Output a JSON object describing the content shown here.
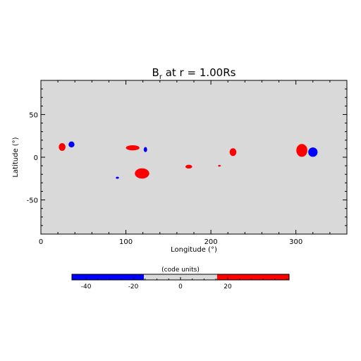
{
  "chart_data": {
    "type": "heatmap",
    "title": "B",
    "title_sub": "r",
    "title_rest": " at r = 1.00Rs",
    "xlabel": "Longitude (°)",
    "ylabel": "Latitude (°)",
    "xlim": [
      0,
      360
    ],
    "ylim": [
      -90,
      90
    ],
    "xticks": [
      0,
      100,
      200,
      300
    ],
    "yticks": [
      -50,
      0,
      50
    ],
    "background_color": "#d9d9d9",
    "positive_color": "#ff0000",
    "negative_color": "#0000ff",
    "grid": false,
    "spots": [
      {
        "lon": 25,
        "lat": 12,
        "rlon": 4,
        "rlat": 4.5,
        "sign": "positive"
      },
      {
        "lon": 36,
        "lat": 15,
        "rlon": 3.5,
        "rlat": 3.5,
        "sign": "negative"
      },
      {
        "lon": 108,
        "lat": 11,
        "rlon": 8,
        "rlat": 3,
        "sign": "positive"
      },
      {
        "lon": 123,
        "lat": 9,
        "rlon": 2,
        "rlat": 3,
        "sign": "negative"
      },
      {
        "lon": 90,
        "lat": -24,
        "rlon": 1.8,
        "rlat": 1.2,
        "sign": "negative"
      },
      {
        "lon": 119,
        "lat": -19,
        "rlon": 8.5,
        "rlat": 6,
        "sign": "positive"
      },
      {
        "lon": 174,
        "lat": -11,
        "rlon": 4,
        "rlat": 2.2,
        "sign": "positive"
      },
      {
        "lon": 210,
        "lat": -10,
        "rlon": 1.5,
        "rlat": 1,
        "sign": "positive"
      },
      {
        "lon": 226,
        "lat": 6,
        "rlon": 4,
        "rlat": 4.5,
        "sign": "positive"
      },
      {
        "lon": 307,
        "lat": 8,
        "rlon": 6.5,
        "rlat": 7.5,
        "sign": "positive"
      },
      {
        "lon": 320,
        "lat": 6,
        "rlon": 5.5,
        "rlat": 5.5,
        "sign": "negative"
      }
    ],
    "colorbar": {
      "label": "(code units)",
      "range": [
        -46,
        46
      ],
      "ticks": [
        -40,
        -20,
        0,
        20
      ],
      "segments": [
        {
          "from": -46,
          "to": -15.5,
          "color": "#0000ff"
        },
        {
          "from": -15.5,
          "to": 15.5,
          "color": "#d9d9d9"
        },
        {
          "from": 15.5,
          "to": 46,
          "color": "#ff0000"
        }
      ]
    }
  }
}
